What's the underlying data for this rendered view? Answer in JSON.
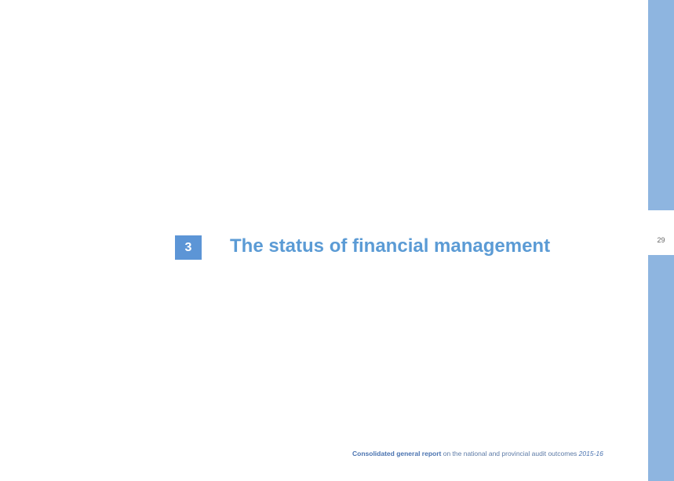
{
  "page": {
    "number": "29",
    "accent_color": "#5b9bd5",
    "sidebar_color": "#8eb5e0"
  },
  "chapter": {
    "number": "3",
    "title": "The status of financial management"
  },
  "footer": {
    "bold_text": "Consolidated general report",
    "middle_text": " on the national and provincial audit outcomes ",
    "italic_text": "2015-16"
  }
}
